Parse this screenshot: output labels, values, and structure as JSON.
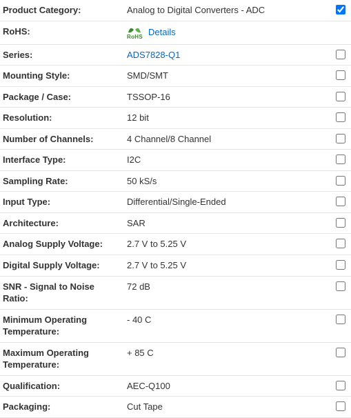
{
  "colors": {
    "link": "#0066cc",
    "text": "#333333",
    "border": "#e5e5e5",
    "rohs_green": "#3a8a2e"
  },
  "rows": [
    {
      "label": "Product Category:",
      "value": "Analog to Digital Converters - ADC",
      "checked": true,
      "type": "text"
    },
    {
      "label": "RoHS:",
      "value": "Details",
      "checked": null,
      "type": "rohs"
    },
    {
      "label": "Series:",
      "value": "ADS7828-Q1",
      "checked": false,
      "type": "link"
    },
    {
      "label": "Mounting Style:",
      "value": "SMD/SMT",
      "checked": false,
      "type": "text"
    },
    {
      "label": "Package / Case:",
      "value": "TSSOP-16",
      "checked": false,
      "type": "text"
    },
    {
      "label": "Resolution:",
      "value": "12 bit",
      "checked": false,
      "type": "text"
    },
    {
      "label": "Number of Channels:",
      "value": "4 Channel/8 Channel",
      "checked": false,
      "type": "text"
    },
    {
      "label": "Interface Type:",
      "value": "I2C",
      "checked": false,
      "type": "text"
    },
    {
      "label": "Sampling Rate:",
      "value": "50 kS/s",
      "checked": false,
      "type": "text"
    },
    {
      "label": "Input Type:",
      "value": "Differential/Single-Ended",
      "checked": false,
      "type": "text"
    },
    {
      "label": "Architecture:",
      "value": "SAR",
      "checked": false,
      "type": "text"
    },
    {
      "label": "Analog Supply Voltage:",
      "value": "2.7 V to 5.25 V",
      "checked": false,
      "type": "text"
    },
    {
      "label": "Digital Supply Voltage:",
      "value": "2.7 V to 5.25 V",
      "checked": false,
      "type": "text"
    },
    {
      "label": "SNR - Signal to Noise Ratio:",
      "value": "72 dB",
      "checked": false,
      "type": "text"
    },
    {
      "label": "Minimum Operating Temperature:",
      "value": "- 40 C",
      "checked": false,
      "type": "text"
    },
    {
      "label": "Maximum Operating Temperature:",
      "value": "+ 85 C",
      "checked": false,
      "type": "text"
    },
    {
      "label": "Qualification:",
      "value": "AEC-Q100",
      "checked": false,
      "type": "text"
    },
    {
      "label": "Packaging:",
      "value": "Cut Tape",
      "checked": false,
      "type": "text"
    }
  ]
}
